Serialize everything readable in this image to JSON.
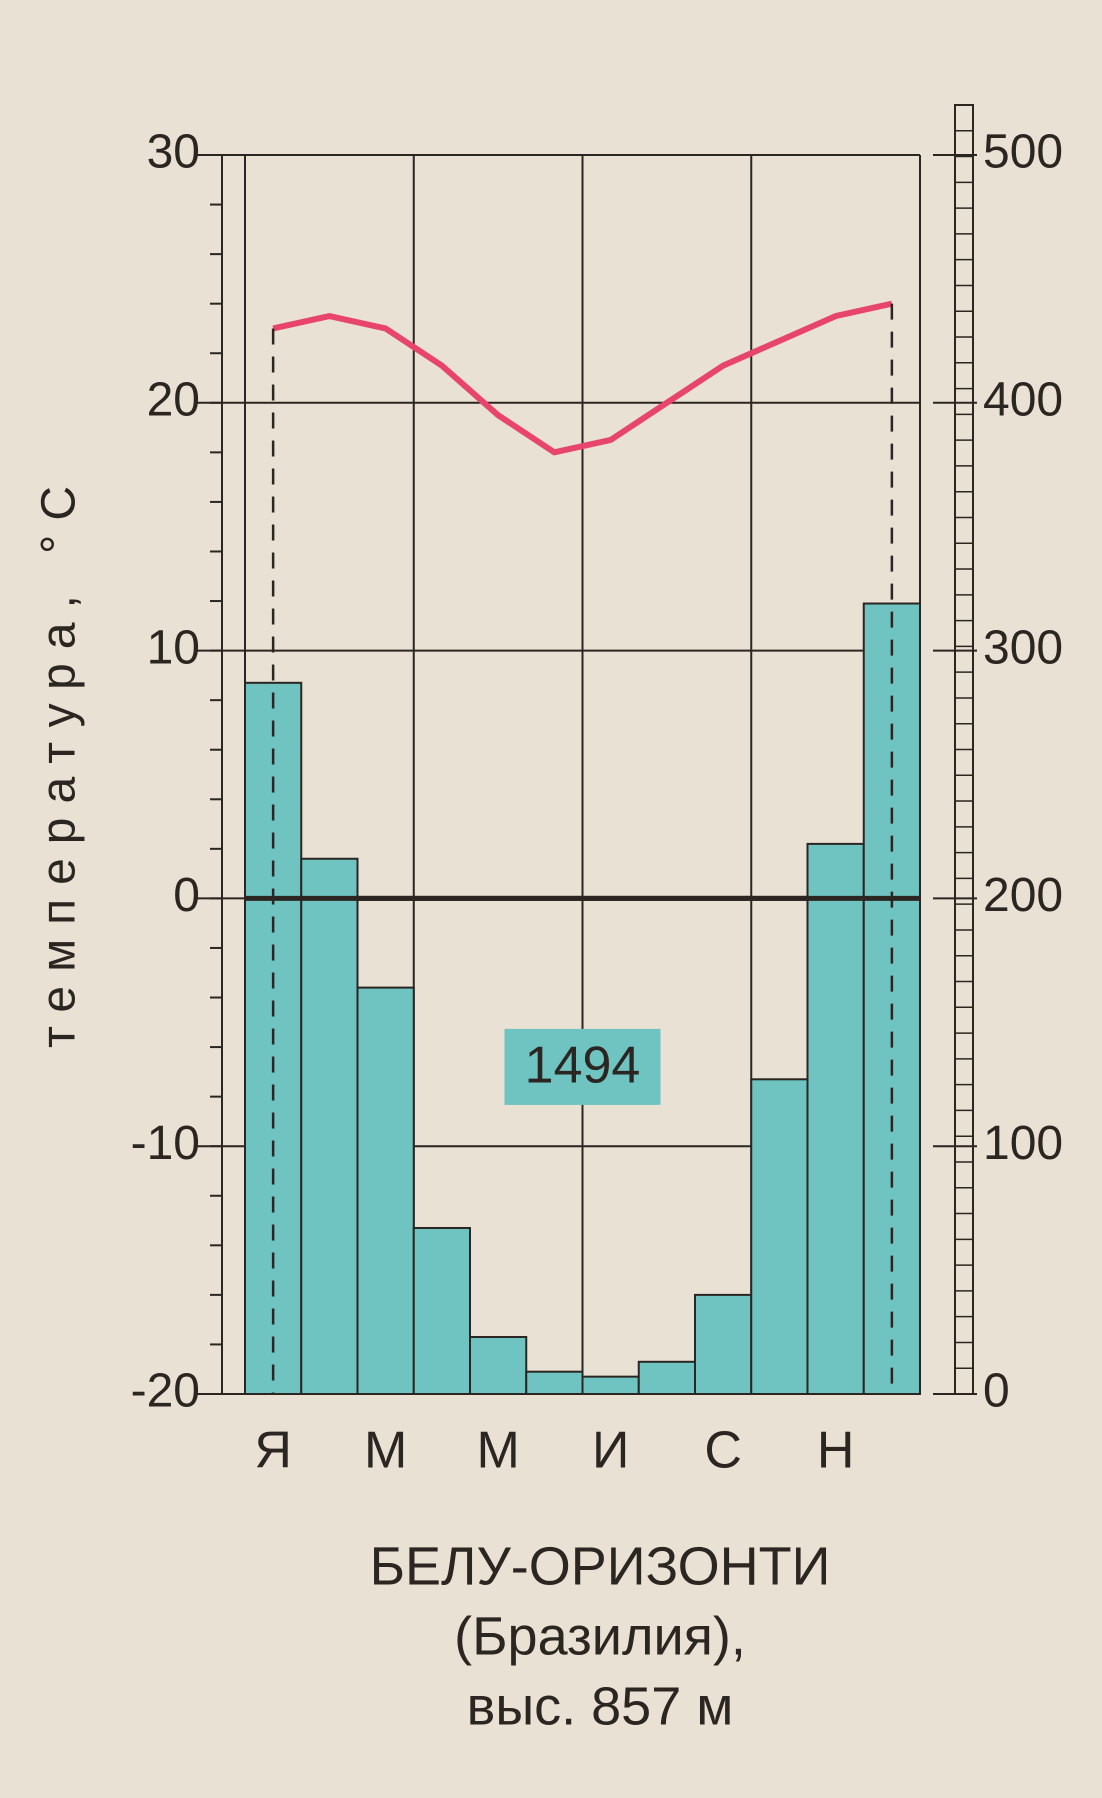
{
  "chart_data": {
    "type": "climograph",
    "y_label": "температура, °С",
    "categories": [
      "Я",
      null,
      "М",
      null,
      "М",
      null,
      "И",
      null,
      "С",
      null,
      "Н",
      null
    ],
    "series": [
      {
        "type": "bar",
        "axis": "y2",
        "color": "#6fc3c1",
        "values": [
          287,
          216,
          164,
          67,
          23,
          9,
          7,
          13,
          40,
          127,
          222,
          319
        ]
      },
      {
        "type": "line",
        "color": "#e8456c",
        "values": [
          23,
          23.5,
          23,
          21.5,
          19.5,
          18,
          18.5,
          20,
          21.5,
          22.5,
          23.5,
          24
        ]
      }
    ],
    "ylim": [
      -20,
      30
    ],
    "yticks": [
      -20,
      -10,
      0,
      10,
      20,
      30
    ],
    "y2lim": [
      0,
      500
    ],
    "y2ticks": [
      0,
      100,
      200,
      300,
      400,
      500
    ],
    "annotation": "1494",
    "caption": [
      "БЕЛУ-ОРИЗОНТИ",
      "(Бразилия),",
      "выс. 857 м"
    ],
    "grid": true
  }
}
